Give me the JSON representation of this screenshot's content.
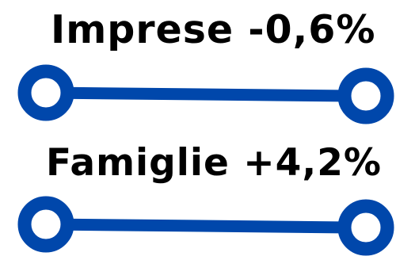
{
  "items": [
    {
      "label": "Imprese -0,6%"
    },
    {
      "label": "Famiglie +4,2%"
    }
  ],
  "colors": {
    "accent": "#0047AB",
    "text": "#000000",
    "background": "#FFFFFF"
  }
}
